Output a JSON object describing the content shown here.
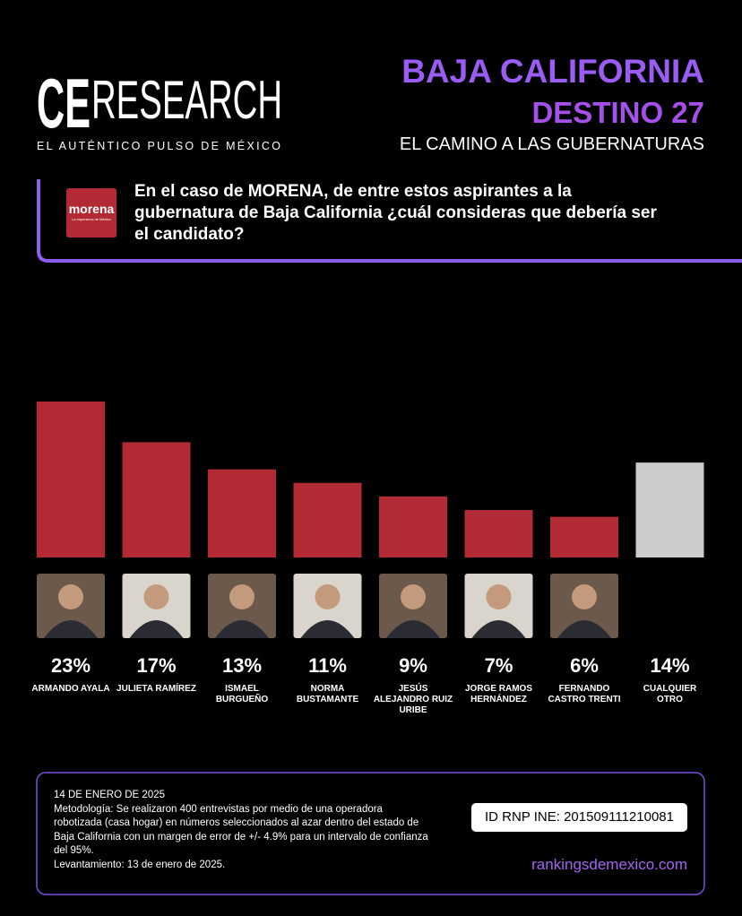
{
  "header": {
    "logo_ce": "CE",
    "logo_research": "RESEARCH",
    "tagline": "EL AUTÉNTICO PULSO DE MÉXICO",
    "title": "BAJA CALIFORNIA",
    "subtitle": "DESTINO 27",
    "kicker": "EL CAMINO A LAS GUBERNATURAS"
  },
  "question": {
    "party_logo": "morena",
    "party_slogan": "La esperanza de México",
    "text": "En el caso de MORENA, de entre estos aspirantes a la gubernatura de Baja California ¿cuál consideras que debería ser el candidato?"
  },
  "chart_data": {
    "type": "bar",
    "categories": [
      "ARMANDO AYALA",
      "JULIETA RAMÍREZ",
      "ISMAEL BURGUEÑO",
      "NORMA BUSTAMANTE",
      "JESÚS ALEJANDRO RUIZ URIBE",
      "JORGE RAMOS HERNÁNDEZ",
      "FERNANDO CASTRO TRENTI",
      "CUALQUIER OTRO"
    ],
    "values": [
      23,
      17,
      13,
      11,
      9,
      7,
      6,
      14
    ],
    "value_labels": [
      "23%",
      "17%",
      "13%",
      "11%",
      "9%",
      "7%",
      "6%",
      "14%"
    ],
    "colors": [
      "#b22a33",
      "#b22a33",
      "#b22a33",
      "#b22a33",
      "#b22a33",
      "#b22a33",
      "#b22a33",
      "#cccccc"
    ]
  },
  "footer": {
    "date": "14 DE ENERO DE 2025",
    "methodology": "Metodología: Se realizaron 400 entrevistas por medio de una operadora robotizada (casa hogar) en números seleccionados al azar dentro del estado de Baja California con un margen de error de +/- 4.9% para un intervalo de confianza del 95%.",
    "fieldwork": "Levantamiento: 13 de enero de 2025.",
    "id": "ID RNP INE: 201509111210081",
    "website": "rankingsdemexico.com"
  }
}
